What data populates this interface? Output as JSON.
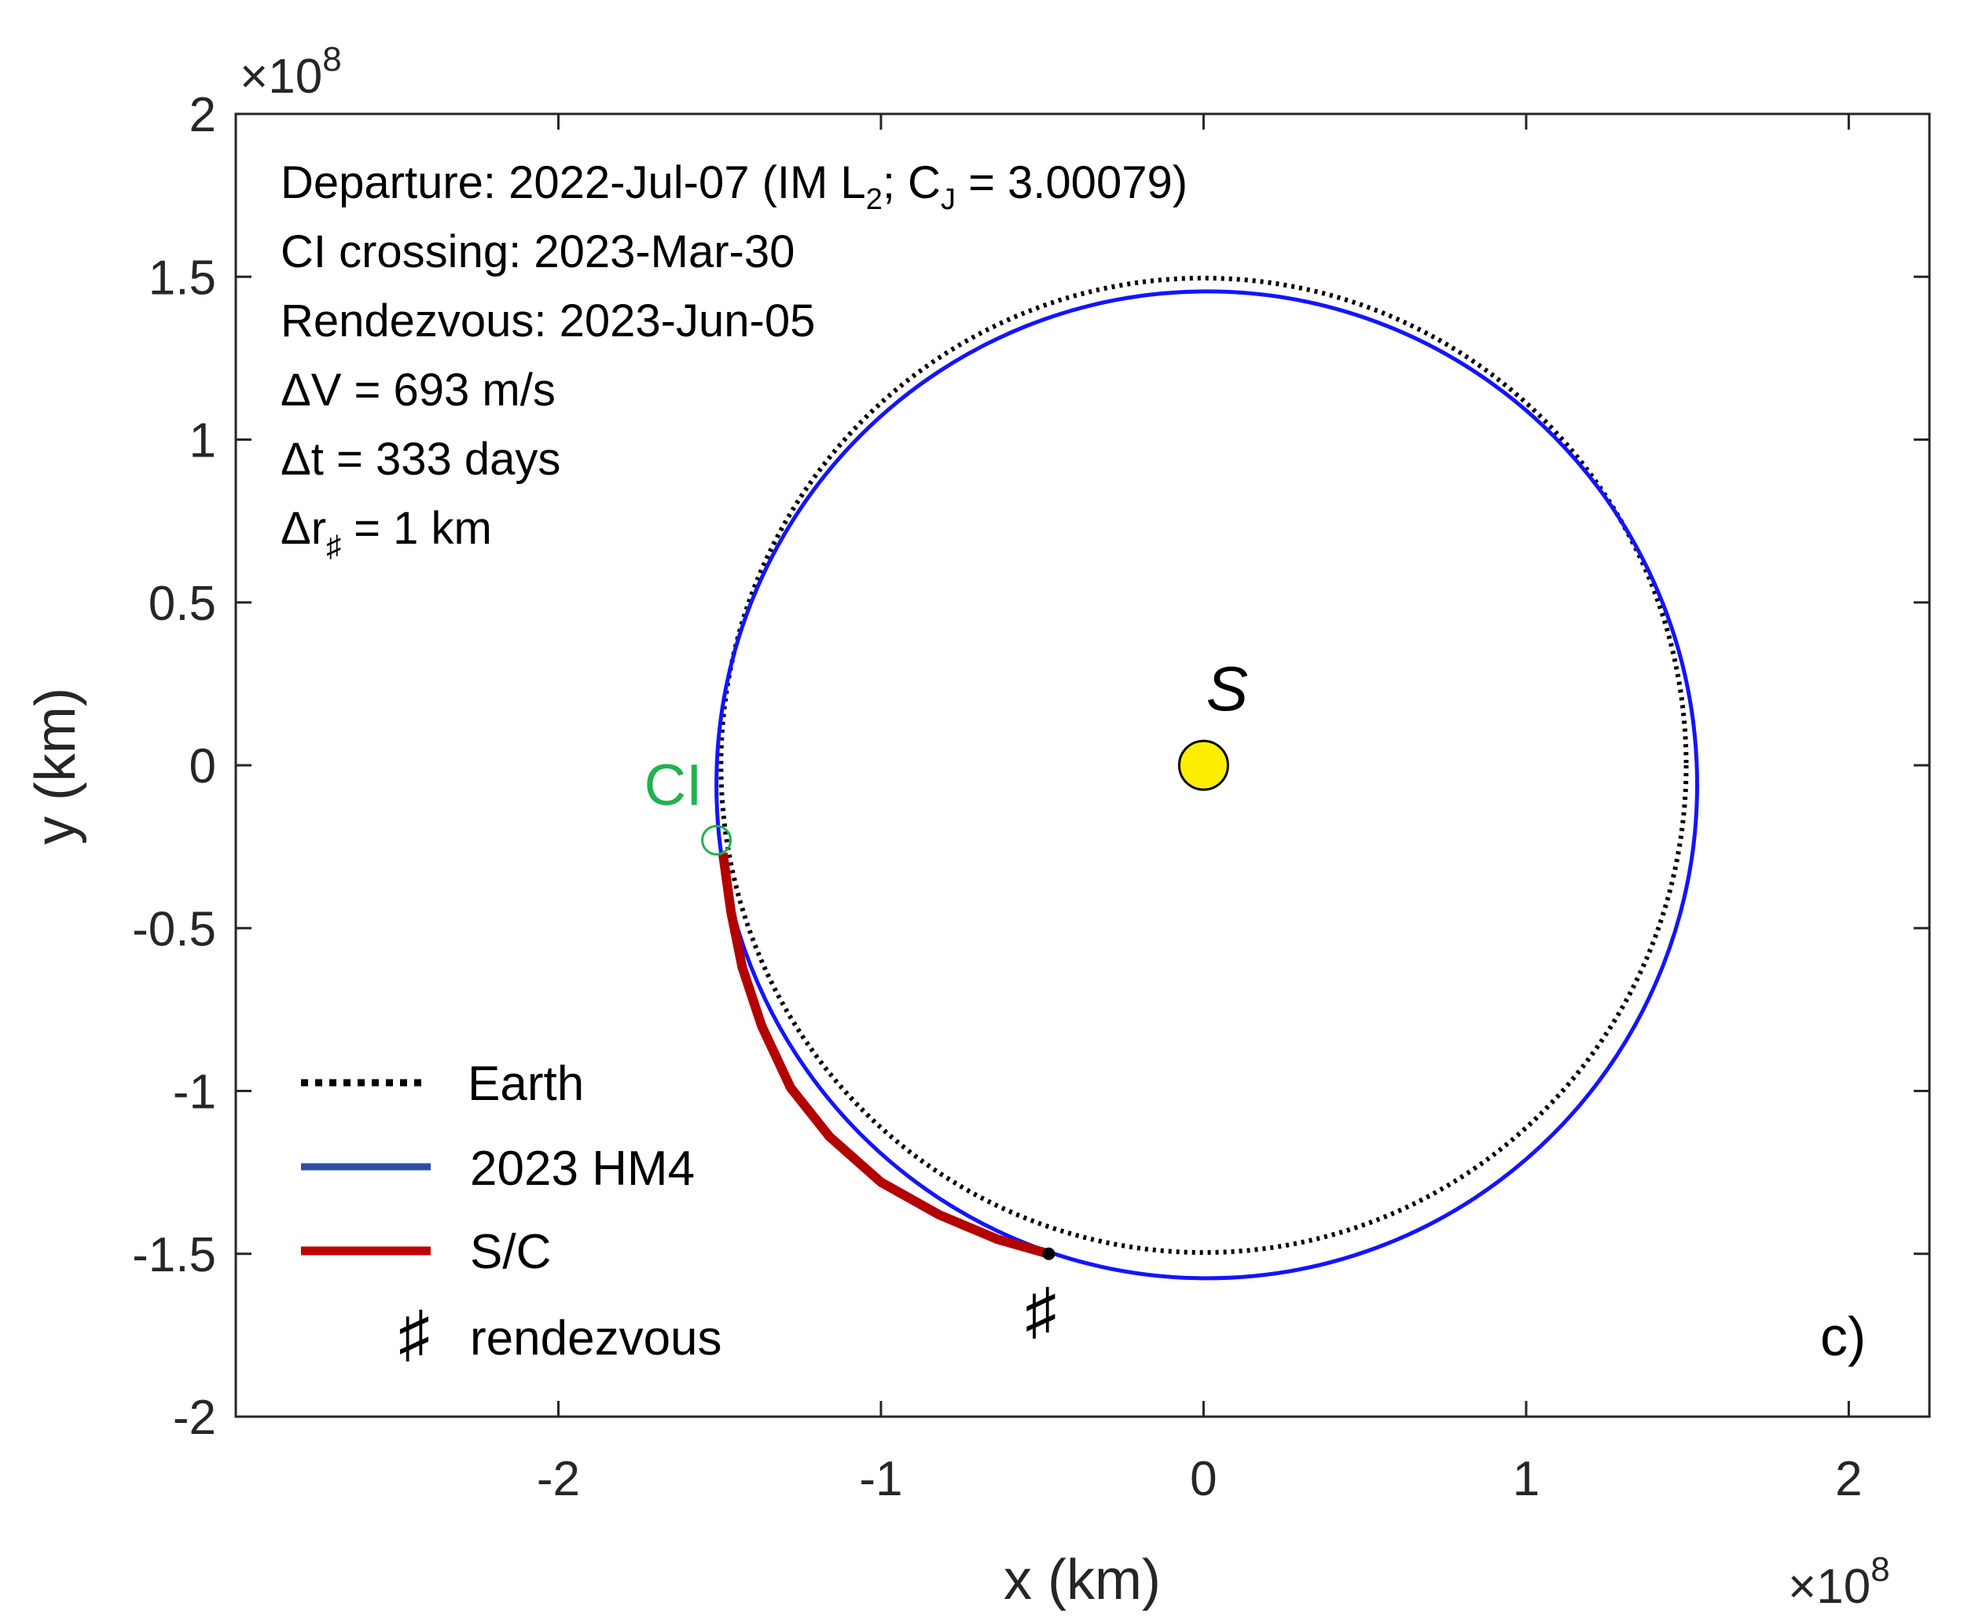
{
  "chart_data": {
    "type": "line",
    "title": "",
    "xlabel": "x (km)",
    "ylabel": "y (km)",
    "x_exponent": "10",
    "x_exponent_power": "8",
    "y_exponent": "10",
    "y_exponent_power": "8",
    "exp_prefix": "×",
    "xlim": [
      -300000000.0,
      225000000.0
    ],
    "ylim": [
      -200000000.0,
      200000000.0
    ],
    "x_ticks": [
      -200000000.0,
      -100000000.0,
      0,
      100000000.0,
      200000000.0
    ],
    "x_tick_labels": [
      "-2",
      "-1",
      "0",
      "1",
      "2"
    ],
    "y_ticks": [
      -200000000.0,
      -150000000.0,
      -100000000.0,
      -50000000.0,
      0,
      50000000.0,
      100000000.0,
      150000000.0,
      200000000.0
    ],
    "y_tick_labels": [
      "-2",
      "-1.5",
      "-1",
      "-0.5",
      "0",
      "0.5",
      "1",
      "1.5",
      "2"
    ],
    "grid": false,
    "legend_placement": "bottom-left",
    "colors": {
      "earth": "#000000",
      "hm4": "#1414ff",
      "sc": "#b30000",
      "sun_fill": "#ffee00",
      "ci": "#22b24c",
      "legend_hm4": "#2e4fa0",
      "legend_sc": "#c00000"
    },
    "series": [
      {
        "name": "Earth",
        "style": "dotted",
        "shape": "circle",
        "center": [
          0,
          0
        ],
        "radius": 149600000.0
      },
      {
        "name": "2023 HM4",
        "style": "solid",
        "shape": "ellipse",
        "center": [
          1000000.0,
          -6000000.0
        ],
        "semi_axis_x": 152000000.0,
        "semi_axis_y": 151500000.0
      },
      {
        "name": "S/C",
        "style": "thick",
        "shape": "arc",
        "points": [
          [
            -149000000.0,
            -27000000.0
          ],
          [
            -146500000.0,
            -45000000.0
          ],
          [
            -143000000.0,
            -62000000.0
          ],
          [
            -137000000.0,
            -80000000.0
          ],
          [
            -128000000.0,
            -99000000.0
          ],
          [
            -116000000.0,
            -114000000.0
          ],
          [
            -100000000.0,
            -128000000.0
          ],
          [
            -82000000.0,
            -138000000.0
          ],
          [
            -64000000.0,
            -145500000.0
          ],
          [
            -48000000.0,
            -150000000.0
          ]
        ]
      }
    ],
    "sun": {
      "label": "S",
      "x": 0,
      "y": 0
    },
    "ci_point": {
      "label": "CI",
      "x": -151000000.0,
      "y": -23000000.0
    },
    "rendezvous_point": {
      "x": -48000000.0,
      "y": -150000000.0,
      "symbol": "♯"
    },
    "annotations": {
      "departure_prefix": "Departure:  2022-Jul-07  (IM L",
      "departure_sub1": "2",
      "departure_mid": "; C",
      "departure_sub2": "J",
      "departure_suffix": " = 3.00079)",
      "ci_crossing": "CI crossing: 2023-Mar-30",
      "rendezvous": "Rendezvous: 2023-Jun-05",
      "delta_v": "ΔV = 693 m/s",
      "delta_t": "Δt = 333 days",
      "delta_r_prefix": "Δr",
      "delta_r_sub": "♯",
      "delta_r_suffix": " = 1 km"
    },
    "legend": [
      {
        "label": "Earth",
        "style": "dotted"
      },
      {
        "label": "2023 HM4",
        "style": "solid"
      },
      {
        "label": "S/C",
        "style": "thick"
      },
      {
        "label": "rendezvous",
        "symbol": "♯"
      }
    ],
    "panel_label": "c)"
  }
}
